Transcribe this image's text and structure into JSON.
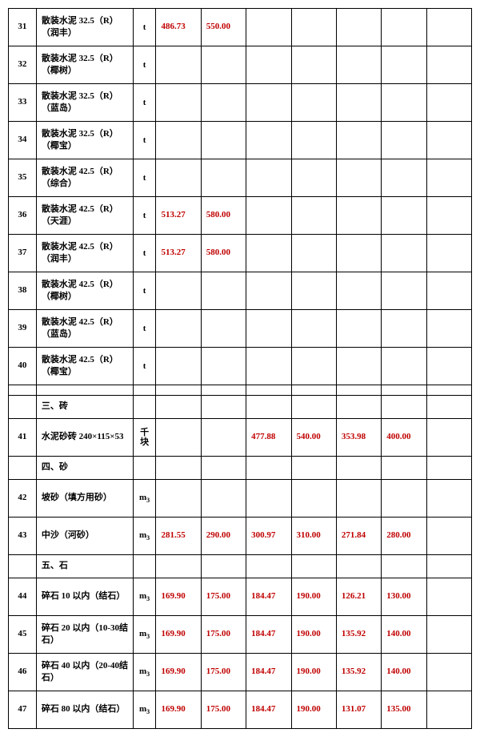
{
  "colors": {
    "value_text": "#c00000",
    "border": "#000000",
    "background": "#ffffff"
  },
  "rows": [
    {
      "seq": "31",
      "name": "散装水泥 32.5（R）（润丰）",
      "unit": "t",
      "v": [
        "486.73",
        "550.00",
        "",
        "",
        "",
        "",
        ""
      ]
    },
    {
      "seq": "32",
      "name": "散装水泥 32.5（R）（椰树）",
      "unit": "t",
      "v": [
        "",
        "",
        "",
        "",
        "",
        "",
        ""
      ]
    },
    {
      "seq": "33",
      "name": "散装水泥 32.5（R）（蓝岛）",
      "unit": "t",
      "v": [
        "",
        "",
        "",
        "",
        "",
        "",
        ""
      ]
    },
    {
      "seq": "34",
      "name": "散装水泥 32.5（R）（椰宝）",
      "unit": "t",
      "v": [
        "",
        "",
        "",
        "",
        "",
        "",
        ""
      ]
    },
    {
      "seq": "35",
      "name": "散装水泥 42.5（R）（综合）",
      "unit": "t",
      "v": [
        "",
        "",
        "",
        "",
        "",
        "",
        ""
      ]
    },
    {
      "seq": "36",
      "name": "散装水泥 42.5（R）（天涯）",
      "unit": "t",
      "v": [
        "513.27",
        "580.00",
        "",
        "",
        "",
        "",
        ""
      ]
    },
    {
      "seq": "37",
      "name": "散装水泥 42.5（R）（润丰）",
      "unit": "t",
      "v": [
        "513.27",
        "580.00",
        "",
        "",
        "",
        "",
        ""
      ]
    },
    {
      "seq": "38",
      "name": "散装水泥 42.5（R）（椰树）",
      "unit": "t",
      "v": [
        "",
        "",
        "",
        "",
        "",
        "",
        ""
      ]
    },
    {
      "seq": "39",
      "name": "散装水泥 42.5（R）（蓝岛）",
      "unit": "t",
      "v": [
        "",
        "",
        "",
        "",
        "",
        "",
        ""
      ]
    },
    {
      "seq": "40",
      "name": "散装水泥 42.5（R）（椰宝）",
      "unit": "t",
      "v": [
        "",
        "",
        "",
        "",
        "",
        "",
        ""
      ]
    },
    {
      "spacer": true
    },
    {
      "seq": "",
      "name": "三、砖",
      "unit": "",
      "v": [
        "",
        "",
        "",
        "",
        "",
        "",
        ""
      ],
      "short": true
    },
    {
      "seq": "41",
      "name": "水泥砂砖  240×115×53",
      "unit": "千块",
      "v": [
        "",
        "",
        "477.88",
        "540.00",
        "353.98",
        "400.00"
      ]
    },
    {
      "seq": "",
      "name": "四、砂",
      "unit": "",
      "v": [
        "",
        "",
        "",
        "",
        "",
        "",
        ""
      ],
      "short": true
    },
    {
      "seq": "42",
      "name": "坡砂（填方用砂）",
      "unit": "m3",
      "v": [
        "",
        "",
        "",
        "",
        "",
        "",
        ""
      ]
    },
    {
      "seq": "43",
      "name": "中沙（河砂）",
      "unit": "m3",
      "v": [
        "281.55",
        "290.00",
        "300.97",
        "310.00",
        "271.84",
        "280.00"
      ]
    },
    {
      "seq": "",
      "name": "五、石",
      "unit": "",
      "v": [
        "",
        "",
        "",
        "",
        "",
        "",
        ""
      ],
      "short": true
    },
    {
      "seq": "44",
      "name": "碎石 10 以内（结石）",
      "unit": "m3",
      "v": [
        "169.90",
        "175.00",
        "184.47",
        "190.00",
        "126.21",
        "130.00"
      ]
    },
    {
      "seq": "45",
      "name": "碎石 20 以内（10-30结石）",
      "unit": "m3",
      "v": [
        "169.90",
        "175.00",
        "184.47",
        "190.00",
        "135.92",
        "140.00"
      ]
    },
    {
      "seq": "46",
      "name": "碎石 40 以内（20-40结石）",
      "unit": "m3",
      "v": [
        "169.90",
        "175.00",
        "184.47",
        "190.00",
        "135.92",
        "140.00"
      ]
    },
    {
      "seq": "47",
      "name": "碎石 80 以内（结石）",
      "unit": "m3",
      "v": [
        "169.90",
        "175.00",
        "184.47",
        "190.00",
        "131.07",
        "135.00"
      ]
    }
  ]
}
